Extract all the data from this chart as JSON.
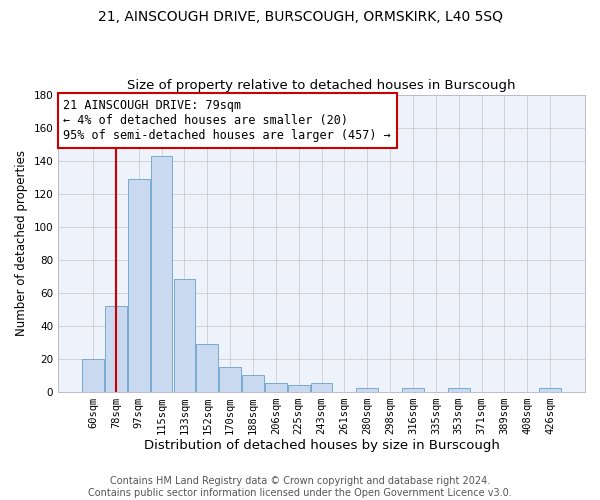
{
  "title": "21, AINSCOUGH DRIVE, BURSCOUGH, ORMSKIRK, L40 5SQ",
  "subtitle": "Size of property relative to detached houses in Burscough",
  "xlabel": "Distribution of detached houses by size in Burscough",
  "ylabel": "Number of detached properties",
  "categories": [
    "60sqm",
    "78sqm",
    "97sqm",
    "115sqm",
    "133sqm",
    "152sqm",
    "170sqm",
    "188sqm",
    "206sqm",
    "225sqm",
    "243sqm",
    "261sqm",
    "280sqm",
    "298sqm",
    "316sqm",
    "335sqm",
    "353sqm",
    "371sqm",
    "389sqm",
    "408sqm",
    "426sqm"
  ],
  "values": [
    20,
    52,
    129,
    143,
    68,
    29,
    15,
    10,
    5,
    4,
    5,
    0,
    2,
    0,
    2,
    0,
    2,
    0,
    0,
    0,
    2
  ],
  "bar_color": "#c8d9f0",
  "bar_edge_color": "#7aaad0",
  "ylim": [
    0,
    180
  ],
  "yticks": [
    0,
    20,
    40,
    60,
    80,
    100,
    120,
    140,
    160,
    180
  ],
  "annotation_line1": "21 AINSCOUGH DRIVE: 79sqm",
  "annotation_line2": "← 4% of detached houses are smaller (20)",
  "annotation_line3": "95% of semi-detached houses are larger (457) →",
  "vline_x": 1,
  "vline_color": "#cc0000",
  "box_edgecolor": "#cc0000",
  "plot_bg_color": "#eef2fa",
  "grid_color": "#cccccc",
  "footer_text": "Contains HM Land Registry data © Crown copyright and database right 2024.\nContains public sector information licensed under the Open Government Licence v3.0.",
  "title_fontsize": 10,
  "subtitle_fontsize": 9.5,
  "xlabel_fontsize": 9.5,
  "ylabel_fontsize": 8.5,
  "tick_fontsize": 7.5,
  "annotation_fontsize": 8.5,
  "footer_fontsize": 7
}
